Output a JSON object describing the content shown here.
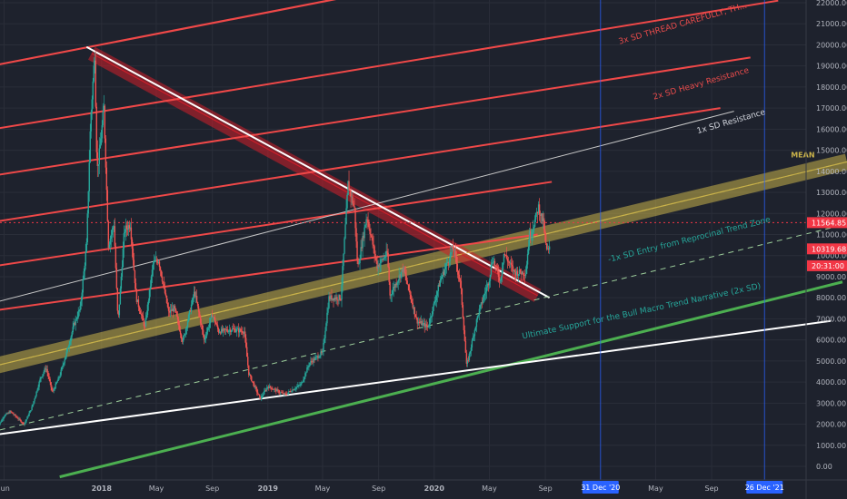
{
  "chart_data": {
    "type": "line",
    "title": "",
    "xlabel": "",
    "ylabel": "",
    "ylim": [
      -400,
      22100
    ],
    "grid": true,
    "y_ticks": [
      0,
      1000,
      2000,
      3000,
      4000,
      5000,
      6000,
      7000,
      8000,
      9000,
      10000,
      11000,
      12000,
      13000,
      14000,
      15000,
      16000,
      17000,
      18000,
      19000,
      20000,
      21000,
      22000
    ],
    "y_tick_labels": [
      "0.00",
      "1000.00",
      "2000.00",
      "3000.00",
      "4000.00",
      "5000.00",
      "6000.00",
      "7000.00",
      "8000.00",
      "9000.00",
      "10000.00",
      "11000.00",
      "12000.00",
      "13000.00",
      "14000.00",
      "15000.00",
      "16000.00",
      "17000.00",
      "18000.00",
      "19000.00",
      "20000.00",
      "21000.00",
      "22000.00"
    ],
    "x_ticks": [
      {
        "label": "Jun",
        "date": "2017-06-01",
        "bold": false
      },
      {
        "label": "2018",
        "date": "2018-01-01",
        "bold": true
      },
      {
        "label": "May",
        "date": "2018-05-01",
        "bold": false
      },
      {
        "label": "Sep",
        "date": "2018-09-01",
        "bold": false
      },
      {
        "label": "2019",
        "date": "2019-01-01",
        "bold": true
      },
      {
        "label": "May",
        "date": "2019-05-01",
        "bold": false
      },
      {
        "label": "Sep",
        "date": "2019-09-01",
        "bold": false
      },
      {
        "label": "2020",
        "date": "2020-01-01",
        "bold": true
      },
      {
        "label": "May",
        "date": "2020-05-01",
        "bold": false
      },
      {
        "label": "Sep",
        "date": "2020-09-01",
        "bold": false
      },
      {
        "label": "May",
        "date": "2021-05-01",
        "bold": false
      },
      {
        "label": "Sep",
        "date": "2021-09-01",
        "bold": false
      }
    ],
    "date_markers": [
      {
        "label": "31 Dec '20",
        "date": "2020-12-31"
      },
      {
        "label": "26 Dec '21",
        "date": "2021-12-26"
      }
    ],
    "price_tags": [
      {
        "value": 11564.85,
        "label": "11564.85",
        "color": "#f23645"
      },
      {
        "value": 10319.68,
        "label": "10319.68",
        "color": "#f23645"
      },
      {
        "value": 9520,
        "label": "20:31:00",
        "color": "#f23645"
      }
    ],
    "current_price": 11564.85,
    "price_series": {
      "name": "",
      "points": [
        [
          "2017-05-15",
          1750
        ],
        [
          "2017-06-01",
          2400
        ],
        [
          "2017-06-15",
          2600
        ],
        [
          "2017-07-15",
          2000
        ],
        [
          "2017-08-01",
          2800
        ],
        [
          "2017-08-20",
          4200
        ],
        [
          "2017-09-01",
          4700
        ],
        [
          "2017-09-15",
          3500
        ],
        [
          "2017-10-01",
          4300
        ],
        [
          "2017-10-20",
          5700
        ],
        [
          "2017-11-01",
          6700
        ],
        [
          "2017-11-15",
          7500
        ],
        [
          "2017-11-29",
          10500
        ],
        [
          "2017-12-08",
          16500
        ],
        [
          "2017-12-17",
          19600
        ],
        [
          "2017-12-22",
          14000
        ],
        [
          "2017-12-28",
          15000
        ],
        [
          "2018-01-06",
          17000
        ],
        [
          "2018-01-16",
          10500
        ],
        [
          "2018-01-28",
          11500
        ],
        [
          "2018-02-06",
          6800
        ],
        [
          "2018-02-20",
          11200
        ],
        [
          "2018-03-05",
          11500
        ],
        [
          "2018-03-18",
          8000
        ],
        [
          "2018-04-06",
          6600
        ],
        [
          "2018-04-24",
          9600
        ],
        [
          "2018-05-06",
          9800
        ],
        [
          "2018-05-28",
          7300
        ],
        [
          "2018-06-10",
          7500
        ],
        [
          "2018-06-28",
          5900
        ],
        [
          "2018-07-24",
          8300
        ],
        [
          "2018-08-14",
          6000
        ],
        [
          "2018-09-01",
          7200
        ],
        [
          "2018-09-15",
          6400
        ],
        [
          "2018-10-15",
          6500
        ],
        [
          "2018-11-10",
          6400
        ],
        [
          "2018-11-20",
          4400
        ],
        [
          "2018-12-15",
          3200
        ],
        [
          "2019-01-01",
          3800
        ],
        [
          "2019-02-07",
          3400
        ],
        [
          "2019-03-15",
          3900
        ],
        [
          "2019-04-02",
          4900
        ],
        [
          "2019-05-01",
          5400
        ],
        [
          "2019-05-15",
          8000
        ],
        [
          "2019-06-10",
          8000
        ],
        [
          "2019-06-26",
          13400
        ],
        [
          "2019-07-10",
          12200
        ],
        [
          "2019-07-17",
          9400
        ],
        [
          "2019-08-06",
          11900
        ],
        [
          "2019-08-29",
          9500
        ],
        [
          "2019-09-20",
          10100
        ],
        [
          "2019-09-26",
          8100
        ],
        [
          "2019-10-25",
          9400
        ],
        [
          "2019-11-24",
          6900
        ],
        [
          "2019-12-18",
          6600
        ],
        [
          "2020-01-14",
          8800
        ],
        [
          "2020-02-12",
          10400
        ],
        [
          "2020-02-28",
          8600
        ],
        [
          "2020-03-12",
          4800
        ],
        [
          "2020-03-16",
          5100
        ],
        [
          "2020-04-06",
          7200
        ],
        [
          "2020-04-30",
          8800
        ],
        [
          "2020-05-08",
          9900
        ],
        [
          "2020-05-25",
          8800
        ],
        [
          "2020-06-02",
          10100
        ],
        [
          "2020-06-25",
          9200
        ],
        [
          "2020-07-20",
          9200
        ],
        [
          "2020-07-28",
          11000
        ],
        [
          "2020-08-03",
          11200
        ],
        [
          "2020-08-17",
          12300
        ],
        [
          "2020-08-28",
          11500
        ],
        [
          "2020-09-03",
          10300
        ],
        [
          "2020-09-08",
          10200
        ],
        [
          "2020-09-10",
          10319.68
        ]
      ]
    },
    "annotations": [
      {
        "text": "3x SD THREAD CAREFULLY, TH...",
        "color": "#e84b4b",
        "date": "2021-07-01",
        "value": 20900
      },
      {
        "text": "2x SD Heavy Resistance",
        "color": "#e84b4b",
        "date": "2021-08-10",
        "value": 18050
      },
      {
        "text": "1x SD Resistance",
        "color": "#d1d4dc",
        "date": "2021-10-15",
        "value": 16250
      },
      {
        "text": "MEAN",
        "color": "#c9b24a",
        "date": "2022-03-20",
        "value": 14650
      },
      {
        "text": "-1x SD Entry from Reprocinal Trend Zone",
        "color": "#26a69a",
        "date": "2021-07-15",
        "value": 10650
      },
      {
        "text": "Ultimate Support for the Bull Macro Trend Narrative (2x SD)",
        "color": "#26a69a",
        "date": "2021-04-01",
        "value": 7250
      }
    ],
    "drawings": [
      {
        "kind": "band",
        "color": "#c9b24a",
        "from": [
          "2017-04-10",
          4600
        ],
        "to": [
          "2022-06-25",
          14450
        ],
        "width": 6
      },
      {
        "kind": "band",
        "color": "#d11f2a",
        "from": [
          "2017-12-10",
          19600
        ],
        "to": [
          "2020-08-15",
          8100
        ],
        "width": 5
      },
      {
        "kind": "line",
        "color": "#ef4848",
        "width": 2.2,
        "from": [
          "2017-04-10",
          18900
        ],
        "to": [
          "2020-12-05",
          24500
        ]
      },
      {
        "kind": "line",
        "color": "#ef4848",
        "width": 2,
        "from": [
          "2017-04-10",
          15900
        ],
        "to": [
          "2022-01-25",
          22100
        ]
      },
      {
        "kind": "line",
        "color": "#ef4848",
        "width": 2,
        "from": [
          "2017-04-10",
          13700
        ],
        "to": [
          "2021-11-25",
          19400
        ]
      },
      {
        "kind": "line",
        "color": "#ef4848",
        "width": 2,
        "from": [
          "2017-04-10",
          11500
        ],
        "to": [
          "2021-09-20",
          17000
        ]
      },
      {
        "kind": "line",
        "color": "#ef4848",
        "width": 2,
        "from": [
          "2017-04-10",
          9400
        ],
        "to": [
          "2020-09-15",
          13500
        ]
      },
      {
        "kind": "line",
        "color": "#ef4848",
        "width": 2,
        "from": [
          "2017-04-10",
          7300
        ],
        "to": [
          "2020-08-15",
          11000
        ]
      },
      {
        "kind": "line",
        "color": "#c8c8c8",
        "width": 1,
        "from": [
          "2017-04-10",
          7600
        ],
        "to": [
          "2021-10-20",
          16850
        ]
      },
      {
        "kind": "line",
        "color": "#ffffff",
        "width": 2,
        "from": [
          "2017-11-29",
          19900
        ],
        "to": [
          "2020-09-10",
          8000
        ]
      },
      {
        "kind": "dashed",
        "color": "#c9b24a",
        "width": 1,
        "from": [
          "2017-04-10",
          4600
        ],
        "to": [
          "2022-06-25",
          14450
        ]
      },
      {
        "kind": "dashed",
        "color": "#9ecf9c",
        "width": 1,
        "from": [
          "2017-04-10",
          1500
        ],
        "to": [
          "2022-06-25",
          11500
        ]
      },
      {
        "kind": "line",
        "color": "#4caf50",
        "width": 3,
        "from": [
          "2017-10-01",
          -500
        ],
        "to": [
          "2022-06-15",
          8750
        ]
      },
      {
        "kind": "line",
        "color": "#ffffff",
        "width": 2,
        "from": [
          "2017-04-10",
          1400
        ],
        "to": [
          "2022-05-20",
          6900
        ]
      }
    ]
  }
}
